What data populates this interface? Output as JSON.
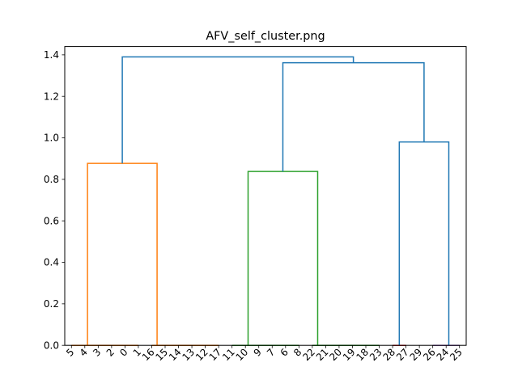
{
  "chart_data": {
    "type": "dendrogram",
    "title": "AFV_self_cluster.png",
    "xlabel": "",
    "ylabel": "",
    "ylim": [
      0,
      1.44
    ],
    "yticks": [
      "0.0",
      "0.2",
      "0.4",
      "0.6",
      "0.8",
      "1.0",
      "1.2",
      "1.4"
    ],
    "yticks_values": [
      0,
      0.2,
      0.4,
      0.6,
      0.8,
      1.0,
      1.2,
      1.4
    ],
    "leaves": [
      "5",
      "4",
      "3",
      "2",
      "0",
      "1",
      "16",
      "15",
      "14",
      "13",
      "12",
      "17",
      "11",
      "10",
      "9",
      "7",
      "6",
      "8",
      "22",
      "21",
      "20",
      "19",
      "18",
      "23",
      "28",
      "27",
      "29",
      "26",
      "24",
      "25"
    ],
    "colors": {
      "above_threshold": "#1f77b4",
      "cluster_1": "#ff7f0e",
      "cluster_2": "#2ca02c",
      "cluster_3": "#d62728",
      "cluster_4": "#9467bd"
    },
    "links": [
      {
        "x": [
          0,
          0,
          1,
          1
        ],
        "y": [
          0,
          0,
          0,
          0
        ],
        "color": "#ff7f0e"
      },
      {
        "x": [
          1,
          1,
          2,
          2
        ],
        "y": [
          0,
          0,
          0,
          0
        ],
        "color": "#ff7f0e"
      },
      {
        "x": [
          2,
          2,
          3,
          3
        ],
        "y": [
          0,
          0,
          0,
          0
        ],
        "color": "#ff7f0e"
      },
      {
        "x": [
          3,
          3,
          4,
          4
        ],
        "y": [
          0,
          0,
          0,
          0
        ],
        "color": "#ff7f0e"
      },
      {
        "x": [
          4,
          4,
          5,
          5
        ],
        "y": [
          0,
          0,
          0,
          0
        ],
        "color": "#ff7f0e"
      },
      {
        "x": [
          6,
          6,
          7,
          7
        ],
        "y": [
          0,
          0,
          0,
          0
        ],
        "color": "#ff7f0e"
      },
      {
        "x": [
          7,
          7,
          8,
          8
        ],
        "y": [
          0,
          0,
          0,
          0
        ],
        "color": "#ff7f0e"
      },
      {
        "x": [
          8,
          8,
          9,
          9
        ],
        "y": [
          0,
          0,
          0,
          0
        ],
        "color": "#ff7f0e"
      },
      {
        "x": [
          9,
          9,
          10,
          10
        ],
        "y": [
          0,
          0,
          0,
          0
        ],
        "color": "#ff7f0e"
      },
      {
        "x": [
          10,
          10,
          11,
          11
        ],
        "y": [
          0,
          0,
          0,
          0
        ],
        "color": "#ff7f0e"
      },
      {
        "x": [
          1.2,
          1.2,
          6.4,
          6.4
        ],
        "y": [
          0,
          0.877,
          0.877,
          0
        ],
        "color": "#ff7f0e"
      },
      {
        "x": [
          12,
          12,
          13,
          13
        ],
        "y": [
          0,
          0,
          0,
          0
        ],
        "color": "#2ca02c"
      },
      {
        "x": [
          13,
          13,
          14,
          14
        ],
        "y": [
          0,
          0,
          0,
          0
        ],
        "color": "#2ca02c"
      },
      {
        "x": [
          14,
          14,
          15,
          15
        ],
        "y": [
          0,
          0,
          0,
          0
        ],
        "color": "#2ca02c"
      },
      {
        "x": [
          15,
          15,
          16,
          16
        ],
        "y": [
          0,
          0,
          0,
          0
        ],
        "color": "#2ca02c"
      },
      {
        "x": [
          16,
          16,
          17,
          17
        ],
        "y": [
          0,
          0,
          0,
          0
        ],
        "color": "#2ca02c"
      },
      {
        "x": [
          18,
          18,
          19,
          19
        ],
        "y": [
          0,
          0,
          0,
          0
        ],
        "color": "#2ca02c"
      },
      {
        "x": [
          19,
          19,
          20,
          20
        ],
        "y": [
          0,
          0,
          0,
          0
        ],
        "color": "#2ca02c"
      },
      {
        "x": [
          20,
          20,
          21,
          21
        ],
        "y": [
          0,
          0,
          0,
          0
        ],
        "color": "#2ca02c"
      },
      {
        "x": [
          21,
          21,
          22,
          22
        ],
        "y": [
          0,
          0,
          0,
          0
        ],
        "color": "#2ca02c"
      },
      {
        "x": [
          22,
          22,
          23,
          23
        ],
        "y": [
          0,
          0,
          0,
          0
        ],
        "color": "#2ca02c"
      },
      {
        "x": [
          13.2,
          13.2,
          18.4,
          18.4
        ],
        "y": [
          0,
          0.838,
          0.838,
          0
        ],
        "color": "#2ca02c"
      },
      {
        "x": [
          24,
          24,
          25,
          25
        ],
        "y": [
          0,
          0,
          0,
          0
        ],
        "color": "#d62728"
      },
      {
        "x": [
          27,
          27,
          28,
          28
        ],
        "y": [
          0,
          0,
          0,
          0
        ],
        "color": "#9467bd"
      },
      {
        "x": [
          28,
          28,
          29,
          29
        ],
        "y": [
          0,
          0,
          0,
          0
        ],
        "color": "#9467bd"
      },
      {
        "x": [
          24.5,
          24.5,
          28.2,
          28.2
        ],
        "y": [
          0,
          0.98,
          0.98,
          0
        ],
        "color": "#1f77b4"
      },
      {
        "x": [
          15.8,
          15.8,
          26.35,
          26.35
        ],
        "y": [
          0.838,
          1.362,
          1.362,
          0.98
        ],
        "color": "#1f77b4"
      },
      {
        "x": [
          3.8,
          3.8,
          21.07,
          21.07
        ],
        "y": [
          0.877,
          1.39,
          1.39,
          1.362
        ],
        "color": "#1f77b4"
      }
    ]
  }
}
